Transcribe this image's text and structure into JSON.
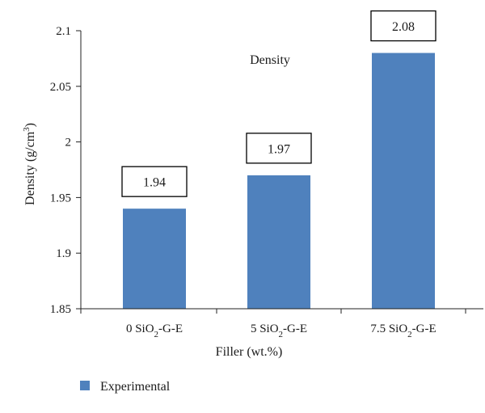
{
  "chart_data": {
    "type": "bar",
    "title": "Density",
    "xlabel": "Filler (wt.%)",
    "ylabel": "Density (g/cm3)",
    "ylabel_parts": {
      "main": "Density (g/cm",
      "sup": "3",
      "end": ")"
    },
    "categories": [
      "0 SiO2-G-E",
      "5 SiO2-G-E",
      "7.5 SiO2-G-E"
    ],
    "category_parts": [
      {
        "pre": "0 SiO",
        "sub": "2",
        "post": "-G-E"
      },
      {
        "pre": "5 SiO",
        "sub": "2",
        "post": "-G-E"
      },
      {
        "pre": "7.5 SiO",
        "sub": "2",
        "post": "-G-E"
      }
    ],
    "series": [
      {
        "name": "Experimental",
        "values": [
          1.94,
          1.97,
          2.08
        ],
        "color": "#4f81bd"
      }
    ],
    "data_labels": [
      "1.94",
      "1.97",
      "2.08"
    ],
    "ylim": [
      1.85,
      2.1
    ],
    "yticks": [
      1.85,
      1.9,
      1.95,
      2,
      2.05,
      2.1
    ],
    "ytick_labels": [
      "1.85",
      "1.9",
      "1.95",
      "2",
      "2.05",
      "2.1"
    ],
    "grid": false,
    "legend_position": "bottom-left"
  }
}
